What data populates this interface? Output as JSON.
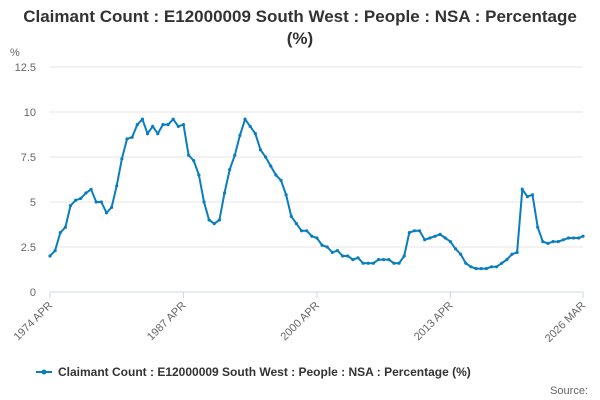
{
  "chart_data": {
    "type": "line",
    "title": "Claimant Count : E12000009 South West : People : NSA : Percentage (%)",
    "y_label": "%",
    "source": "Source:",
    "x": [
      "1974 APR",
      "1974 OCT",
      "1975 APR",
      "1975 OCT",
      "1976 APR",
      "1976 OCT",
      "1977 APR",
      "1977 OCT",
      "1978 APR",
      "1978 OCT",
      "1979 APR",
      "1979 OCT",
      "1980 APR",
      "1980 OCT",
      "1981 APR",
      "1981 OCT",
      "1982 APR",
      "1982 OCT",
      "1983 APR",
      "1983 OCT",
      "1984 APR",
      "1984 OCT",
      "1985 APR",
      "1985 OCT",
      "1986 APR",
      "1986 OCT",
      "1987 APR",
      "1987 OCT",
      "1988 APR",
      "1988 OCT",
      "1989 APR",
      "1989 OCT",
      "1990 APR",
      "1990 OCT",
      "1991 APR",
      "1991 OCT",
      "1992 APR",
      "1992 OCT",
      "1993 APR",
      "1993 OCT",
      "1994 APR",
      "1994 OCT",
      "1995 APR",
      "1995 OCT",
      "1996 APR",
      "1996 OCT",
      "1997 APR",
      "1997 OCT",
      "1998 APR",
      "1998 OCT",
      "1999 APR",
      "1999 OCT",
      "2000 APR",
      "2000 OCT",
      "2001 APR",
      "2001 OCT",
      "2002 APR",
      "2002 OCT",
      "2003 APR",
      "2003 OCT",
      "2004 APR",
      "2004 OCT",
      "2005 APR",
      "2005 OCT",
      "2006 APR",
      "2006 OCT",
      "2007 APR",
      "2007 OCT",
      "2008 APR",
      "2008 OCT",
      "2009 APR",
      "2009 OCT",
      "2010 APR",
      "2010 OCT",
      "2011 APR",
      "2011 OCT",
      "2012 APR",
      "2012 OCT",
      "2013 APR",
      "2013 OCT",
      "2014 APR",
      "2014 OCT",
      "2015 APR",
      "2015 OCT",
      "2016 APR",
      "2016 OCT",
      "2017 APR",
      "2017 OCT",
      "2018 APR",
      "2018 OCT",
      "2019 APR",
      "2019 OCT",
      "2020 APR",
      "2020 OCT",
      "2021 APR",
      "2021 OCT",
      "2022 APR",
      "2022 OCT",
      "2023 APR",
      "2023 OCT",
      "2024 APR",
      "2024 OCT",
      "2025 APR",
      "2025 OCT",
      "2026 MAR"
    ],
    "series": [
      {
        "name": "Claimant Count : E12000009 South West : People : NSA : Percentage (%)",
        "color": "#0a7dbf",
        "values": [
          2.0,
          2.3,
          3.3,
          3.6,
          4.8,
          5.1,
          5.2,
          5.5,
          5.7,
          5.0,
          5.0,
          4.4,
          4.7,
          5.9,
          7.4,
          8.5,
          8.6,
          9.3,
          9.6,
          8.8,
          9.2,
          8.8,
          9.3,
          9.3,
          9.6,
          9.2,
          9.3,
          7.6,
          7.3,
          6.5,
          5.0,
          4.0,
          3.8,
          4.0,
          5.5,
          6.8,
          7.6,
          8.7,
          9.6,
          9.2,
          8.8,
          7.9,
          7.5,
          7.0,
          6.5,
          6.2,
          5.4,
          4.2,
          3.8,
          3.4,
          3.4,
          3.1,
          3.0,
          2.6,
          2.5,
          2.2,
          2.3,
          2.0,
          2.0,
          1.8,
          1.9,
          1.6,
          1.6,
          1.6,
          1.8,
          1.8,
          1.8,
          1.6,
          1.6,
          2.0,
          3.3,
          3.4,
          3.4,
          2.9,
          3.0,
          3.1,
          3.2,
          3.0,
          2.8,
          2.4,
          2.1,
          1.6,
          1.4,
          1.3,
          1.3,
          1.3,
          1.4,
          1.4,
          1.6,
          1.8,
          2.1,
          2.2,
          5.7,
          5.3,
          5.4,
          3.6,
          2.8,
          2.7,
          2.8,
          2.8,
          2.9,
          3.0,
          3.0,
          3.0,
          3.1
        ]
      }
    ],
    "xticks": [
      "1974 APR",
      "1987 APR",
      "2000 APR",
      "2013 APR",
      "2026 MAR"
    ],
    "ylim": [
      0,
      12.5
    ],
    "yticks": [
      0,
      2.5,
      5,
      7.5,
      10,
      12.5
    ],
    "grid": true
  }
}
